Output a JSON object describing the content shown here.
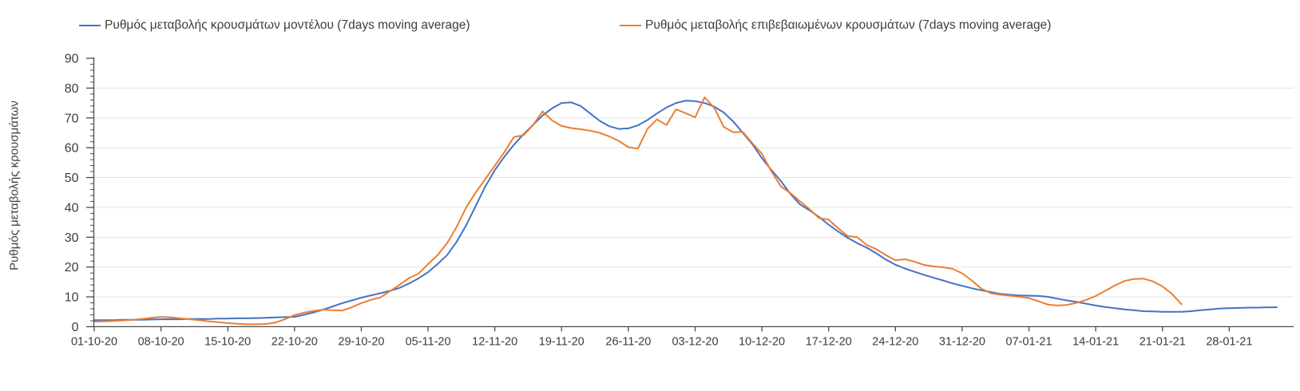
{
  "chart_data": {
    "type": "line",
    "title": "",
    "xlabel": "",
    "ylabel": "Ρυθμός μεταβολής κρουσμάτων",
    "ylim": [
      0,
      90
    ],
    "y_ticks": [
      0,
      10,
      20,
      30,
      40,
      50,
      60,
      70,
      80,
      90
    ],
    "y_minor_tick_step": 2,
    "grid": "horizontal",
    "legend_position": "top",
    "x_start_date": "01-10-20",
    "x_tick_interval_days": 7,
    "x_tick_labels": [
      "01-10-20",
      "08-10-20",
      "15-10-20",
      "22-10-20",
      "29-10-20",
      "05-11-20",
      "12-11-20",
      "19-11-20",
      "26-11-20",
      "03-12-20",
      "10-12-20",
      "17-12-20",
      "24-12-20",
      "31-12-20",
      "07-01-21",
      "14-01-21",
      "21-01-21",
      "28-01-21"
    ],
    "series": [
      {
        "name": "Ρυθμός μεταβολής κρουσμάτων μοντέλου (7days moving average)",
        "color": "#4472C4",
        "values_daily": [
          2.2,
          2.2,
          2.2,
          2.3,
          2.3,
          2.3,
          2.4,
          2.5,
          2.5,
          2.5,
          2.6,
          2.6,
          2.6,
          2.7,
          2.7,
          2.8,
          2.8,
          2.9,
          3.0,
          3.1,
          3.2,
          3.3,
          4.0,
          4.8,
          5.7,
          6.8,
          7.9,
          8.8,
          9.7,
          10.5,
          11.2,
          12.0,
          13.0,
          14.5,
          16.2,
          18.3,
          21.0,
          24.0,
          28.5,
          34.0,
          40.5,
          47.0,
          52.5,
          57.0,
          61.0,
          64.5,
          67.6,
          70.8,
          73.2,
          75.0,
          75.2,
          74.0,
          71.5,
          69.0,
          67.2,
          66.3,
          66.5,
          67.5,
          69.3,
          71.5,
          73.5,
          75.0,
          75.8,
          75.6,
          75.0,
          73.8,
          71.8,
          68.8,
          65.0,
          61.2,
          56.5,
          52.5,
          48.8,
          44.5,
          41.0,
          39.0,
          36.8,
          34.2,
          31.9,
          29.8,
          28.0,
          26.5,
          24.6,
          22.5,
          20.8,
          19.5,
          18.4,
          17.4,
          16.4,
          15.5,
          14.5,
          13.7,
          12.9,
          12.2,
          11.6,
          11.0,
          10.7,
          10.5,
          10.4,
          10.3,
          10.0,
          9.4,
          8.8,
          8.3,
          7.7,
          7.1,
          6.6,
          6.2,
          5.8,
          5.5,
          5.2,
          5.1,
          5.0,
          5.0,
          5.0,
          5.2,
          5.5,
          5.8,
          6.1,
          6.2,
          6.3,
          6.4,
          6.4,
          6.5,
          6.5
        ]
      },
      {
        "name": "Ρυθμός μεταβολής επιβεβαιωμένων κρουσμάτων (7days moving average)",
        "color": "#ED7D31",
        "values_daily": [
          1.7,
          1.8,
          1.9,
          2.1,
          2.3,
          2.6,
          3.0,
          3.3,
          3.1,
          2.8,
          2.5,
          2.2,
          1.8,
          1.5,
          1.2,
          1.0,
          0.8,
          0.8,
          0.9,
          1.4,
          2.5,
          3.9,
          4.7,
          5.3,
          5.7,
          5.5,
          5.4,
          6.5,
          7.9,
          9.0,
          9.8,
          11.9,
          14.0,
          16.3,
          17.8,
          21.0,
          24.0,
          28.0,
          33.5,
          40.0,
          45.0,
          49.5,
          54.0,
          58.5,
          63.6,
          64.2,
          67.5,
          72.2,
          69.2,
          67.3,
          66.6,
          66.2,
          65.7,
          65.0,
          63.8,
          62.3,
          60.2,
          59.7,
          66.3,
          69.5,
          67.6,
          72.9,
          71.6,
          70.2,
          76.9,
          73.4,
          67.0,
          65.2,
          65.3,
          61.5,
          58.0,
          52.0,
          47.0,
          44.8,
          42.0,
          39.4,
          36.4,
          35.9,
          33.0,
          30.4,
          30.0,
          27.4,
          26.0,
          24.0,
          22.3,
          22.6,
          21.8,
          20.7,
          20.2,
          19.9,
          19.4,
          17.9,
          15.5,
          12.8,
          11.2,
          10.7,
          10.4,
          10.0,
          9.6,
          8.5,
          7.4,
          7.1,
          7.3,
          8.0,
          9.0,
          10.3,
          12.0,
          13.8,
          15.3,
          16.0,
          16.1,
          15.2,
          13.5,
          11.0,
          7.5
        ]
      }
    ]
  },
  "colors": {
    "grid": "#e3e3e3",
    "axis": "#4a4a4a",
    "text": "#3d3d3d"
  }
}
